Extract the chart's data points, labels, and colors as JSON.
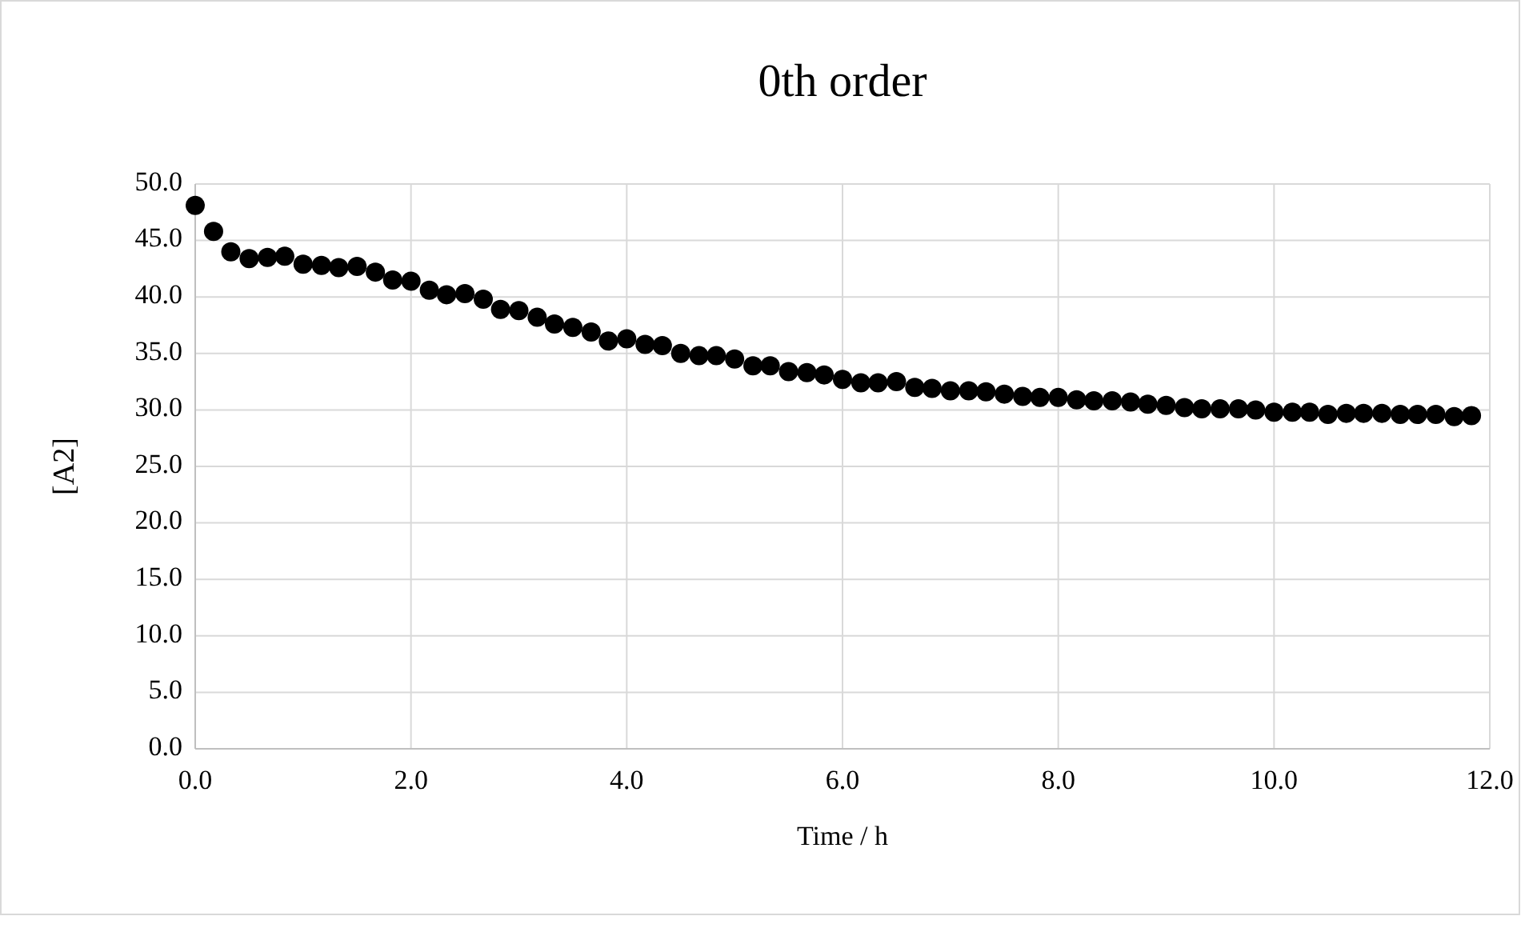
{
  "chart_data": {
    "type": "scatter",
    "title": "0th order",
    "xlabel": "Time / h",
    "ylabel": "[A2]",
    "marker": "circle",
    "grid": true,
    "xlim": [
      0,
      12
    ],
    "xticks": [
      {
        "value": 0,
        "label": "0.0"
      },
      {
        "value": 2,
        "label": "2.0"
      },
      {
        "value": 4,
        "label": "4.0"
      },
      {
        "value": 6,
        "label": "6.0"
      },
      {
        "value": 8,
        "label": "8.0"
      },
      {
        "value": 10,
        "label": "10.0"
      },
      {
        "value": 12,
        "label": "12.0"
      }
    ],
    "ylim": [
      0,
      50
    ],
    "yticks": [
      {
        "value": 0,
        "label": "0.0"
      },
      {
        "value": 5,
        "label": "5.0"
      },
      {
        "value": 10,
        "label": "10.0"
      },
      {
        "value": 15,
        "label": "15.0"
      },
      {
        "value": 20,
        "label": "20.0"
      },
      {
        "value": 25,
        "label": "25.0"
      },
      {
        "value": 30,
        "label": "30.0"
      },
      {
        "value": 35,
        "label": "35.0"
      },
      {
        "value": 40,
        "label": "40.0"
      },
      {
        "value": 45,
        "label": "45.0"
      },
      {
        "value": 50,
        "label": "50.0"
      }
    ],
    "x": [
      0,
      0.17,
      0.33,
      0.5,
      0.67,
      0.83,
      1,
      1.17,
      1.33,
      1.5,
      1.67,
      1.83,
      2,
      2.17,
      2.33,
      2.5,
      2.67,
      2.83,
      3,
      3.17,
      3.33,
      3.5,
      3.67,
      3.83,
      4,
      4.17,
      4.33,
      4.5,
      4.67,
      4.83,
      5,
      5.17,
      5.33,
      5.5,
      5.67,
      5.83,
      6,
      6.17,
      6.33,
      6.5,
      6.67,
      6.83,
      7,
      7.17,
      7.33,
      7.5,
      7.67,
      7.83,
      8,
      8.17,
      8.33,
      8.5,
      8.67,
      8.83,
      9,
      9.17,
      9.33,
      9.5,
      9.67,
      9.83,
      10,
      10.17,
      10.33,
      10.5,
      10.67,
      10.83,
      11,
      11.17,
      11.33,
      11.5,
      11.67,
      11.83
    ],
    "series": [
      {
        "color": "#000000",
        "values": [
          48.1,
          45.8,
          44.0,
          43.4,
          43.5,
          43.6,
          42.9,
          42.8,
          42.6,
          42.7,
          42.2,
          41.5,
          41.4,
          40.6,
          40.2,
          40.3,
          39.8,
          38.9,
          38.8,
          38.2,
          37.6,
          37.3,
          36.9,
          36.1,
          36.3,
          35.8,
          35.7,
          35.0,
          34.8,
          34.8,
          34.5,
          33.9,
          33.9,
          33.4,
          33.3,
          33.1,
          32.7,
          32.4,
          32.4,
          32.5,
          32.0,
          31.9,
          31.7,
          31.7,
          31.6,
          31.4,
          31.2,
          31.1,
          31.1,
          30.9,
          30.8,
          30.8,
          30.7,
          30.5,
          30.4,
          30.2,
          30.1,
          30.1,
          30.1,
          30.0,
          29.8,
          29.8,
          29.8,
          29.6,
          29.7,
          29.7,
          29.7,
          29.6,
          29.6,
          29.6,
          29.4,
          29.5
        ]
      }
    ]
  }
}
